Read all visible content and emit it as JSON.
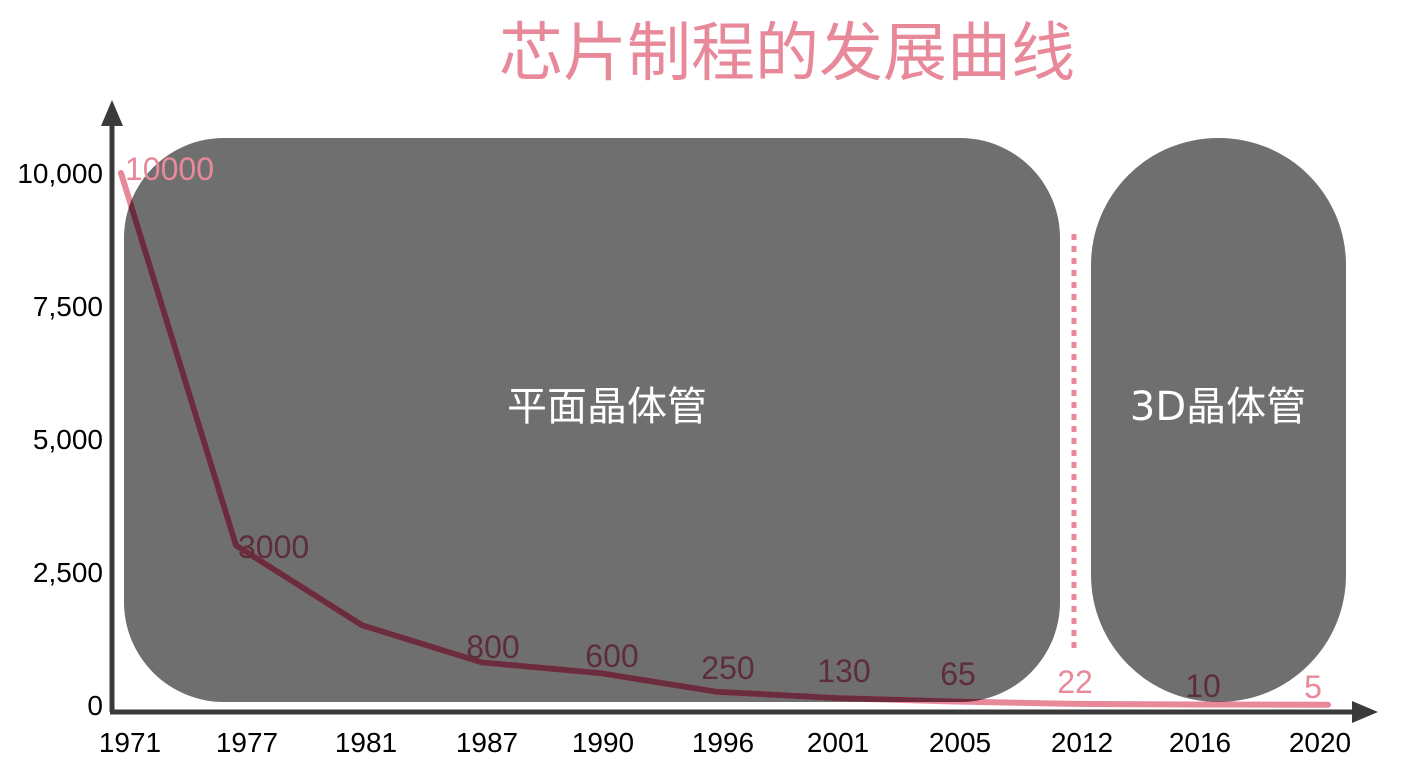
{
  "chart_data": {
    "type": "line",
    "title": "芯片制程的发展曲线",
    "xlabel": "",
    "ylabel": "",
    "categories": [
      "1971",
      "1977",
      "1981",
      "1987",
      "1990",
      "1996",
      "2001",
      "2005",
      "2012",
      "2016",
      "2020"
    ],
    "values": [
      10000,
      3000,
      1500,
      800,
      600,
      250,
      130,
      65,
      22,
      10,
      5
    ],
    "data_labels": [
      "10000",
      "3000",
      "",
      "800",
      "600",
      "250",
      "130",
      "65",
      "22",
      "10",
      "5"
    ],
    "ylim": [
      0,
      10000
    ],
    "y_ticks": [
      0,
      2500,
      5000,
      7500,
      10000
    ],
    "y_tick_labels": [
      "0",
      "2,500",
      "5,000",
      "7,500",
      "10,000"
    ],
    "grid": false,
    "regions": [
      {
        "label": "平面晶体管",
        "from": "1971",
        "to": "2005"
      },
      {
        "label": "3D晶体管",
        "from": "2016",
        "to": "2020"
      }
    ],
    "marker_line_at": "2012",
    "colors": {
      "title": "#e8899a",
      "line": "#e8899a",
      "line_in_region": "#6b2d3e",
      "label": "#e8899a",
      "label_in_region": "#5e2d3c",
      "region_fill": "#6f6f6f",
      "axis": "#3a3a3a"
    }
  }
}
